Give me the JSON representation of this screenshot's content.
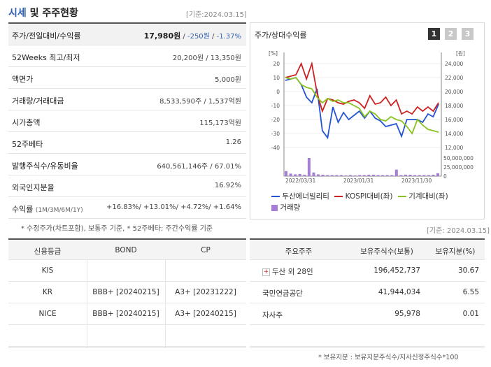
{
  "header": {
    "title_a": "시세",
    "title_b": " 및 주주현황",
    "basis": "[기준:2024.03.15]"
  },
  "price_rows": [
    {
      "label": "주가/전일대비/수익률",
      "value_main": "17,980원",
      "value_sep1": " / ",
      "value_change": "-250원",
      "value_sep2": " / ",
      "value_rate": "-1.37%"
    },
    {
      "label": "52Weeks 최고/최저",
      "value": "20,200원 / 13,350원"
    },
    {
      "label": "액면가",
      "value": "5,000원"
    },
    {
      "label": "거래량/거래대금",
      "value": "8,533,590주 / 1,537억원"
    },
    {
      "label": "시가총액",
      "value": "115,173억원"
    },
    {
      "label": "52주베타",
      "value": "1.26"
    },
    {
      "label": "발행주식수/유동비율",
      "value": "640,561,146주 / 67.01%"
    },
    {
      "label": "외국인지분율",
      "value": "16.92%"
    },
    {
      "label": "수익률",
      "label_small": "(1M/3M/6M/1Y)",
      "returns": [
        "+16.83%",
        "+13.01%",
        "+4.72%",
        "+1.64%"
      ]
    }
  ],
  "footnote_left": "* 수정주가(차트포함), 보통주 기준, * 52주베타: 주간수익률 기준",
  "chart_panel": {
    "title": "주가/상대수익률",
    "tabs": [
      "1",
      "2",
      "3"
    ]
  },
  "chart_data": {
    "type": "line",
    "x_ticks": [
      "2022/03/31",
      "2023/01/31",
      "2023/11/30"
    ],
    "left_axis": {
      "unit": "[%]",
      "ticks": [
        20,
        10,
        0,
        -10,
        -20,
        -30,
        -40
      ]
    },
    "right_axis": {
      "unit": "[원]",
      "ticks": [
        "24,000",
        "22,000",
        "20,000",
        "18,000",
        "16,000",
        "14,000",
        "12,000"
      ]
    },
    "volume_axis": {
      "ticks": [
        "50,000,000",
        "25,000,000",
        "0"
      ]
    },
    "series": [
      {
        "name": "두산에너빌리티",
        "color": "#2453d4",
        "values": [
          8,
          9,
          10,
          5,
          -4,
          -8,
          2,
          -28,
          -33,
          -11,
          -22,
          -15,
          -20,
          -17,
          -14,
          -19,
          -14,
          -19,
          -21,
          -25,
          -24,
          -23,
          -32,
          -20,
          -20,
          -20,
          -22,
          -16,
          -18,
          -9
        ]
      },
      {
        "name": "KOSPI대비(좌)",
        "color": "#cc2222",
        "values": [
          10,
          11,
          12,
          20,
          9,
          20,
          -1,
          -14,
          -5,
          -6,
          -8,
          -9,
          -7,
          -6,
          -8,
          -12,
          -3,
          -9,
          -8,
          -4,
          -10,
          -6,
          -16,
          -14,
          -16,
          -11,
          -14,
          -11,
          -14,
          -8
        ]
      },
      {
        "name": "기계대비(좌)",
        "color": "#8ac21e",
        "values": [
          10,
          9,
          10,
          5,
          3,
          2,
          -4,
          -8,
          -5,
          -7,
          -6,
          -8,
          -8,
          -10,
          -12,
          -18,
          -14,
          -16,
          -20,
          -21,
          -18,
          -20,
          -21,
          -25,
          -30,
          -20,
          -24,
          -27,
          -28,
          -29
        ]
      },
      {
        "name": "거래량",
        "color": "#a57fd6",
        "values": [
          14,
          7,
          5,
          6,
          4,
          50,
          10,
          5,
          4,
          3,
          3,
          3,
          3,
          2,
          3,
          2,
          3,
          3,
          4,
          4,
          3,
          3,
          3,
          3,
          18,
          3,
          4,
          4,
          3,
          3,
          3,
          3,
          4,
          8
        ]
      }
    ]
  },
  "basis_right": "[기준: 2024.03.15]",
  "credit": {
    "headers": [
      "신용등급",
      "BOND",
      "CP"
    ],
    "rows": [
      [
        "KIS",
        "",
        ""
      ],
      [
        "KR",
        "BBB+ [20240215]",
        "A3+ [20231222]"
      ],
      [
        "NICE",
        "BBB+ [20240215]",
        "A3+ [20240215]"
      ],
      [
        "",
        "",
        ""
      ]
    ]
  },
  "holders": {
    "headers": [
      "주요주주",
      "보유주식수(보통)",
      "보유지분(%)"
    ],
    "rows": [
      {
        "name": "두산 외 28인",
        "shares": "196,452,737",
        "ratio": "30.67",
        "expand": "+"
      },
      {
        "name": "국민연금공단",
        "shares": "41,944,034",
        "ratio": "6.55"
      },
      {
        "name": "자사주",
        "shares": "95,978",
        "ratio": "0.01"
      },
      {
        "name": "",
        "shares": "",
        "ratio": ""
      }
    ]
  },
  "footnote_right": "* 보유지분 : 보유지분주식수/지사신정주식수*100"
}
